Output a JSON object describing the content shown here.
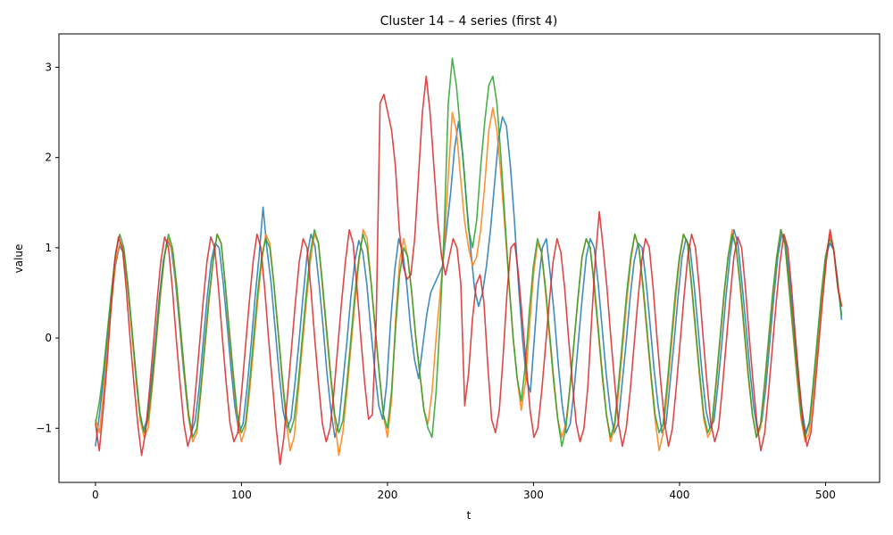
{
  "chart_data": {
    "type": "line",
    "title": "Cluster 14 – 4 series (first 4)",
    "xlabel": "t",
    "ylabel": "value",
    "xlim": [
      -25,
      537
    ],
    "ylim": [
      -1.6,
      3.37
    ],
    "xticks": [
      0,
      100,
      200,
      300,
      400,
      500
    ],
    "yticks": [
      -1,
      0,
      1,
      2,
      3
    ],
    "grid": false,
    "legend": "none",
    "n_points": 512,
    "series": [
      {
        "color": "#1f77b4",
        "values": [
          -1.2,
          -0.85,
          -0.45,
          0.0,
          0.42,
          0.8,
          1.02,
          0.95,
          0.6,
          0.15,
          -0.35,
          -0.8,
          -1.02,
          -0.9,
          -0.5,
          -0.05,
          0.45,
          0.85,
          1.08,
          1.0,
          0.65,
          0.18,
          -0.32,
          -0.75,
          -1.05,
          -0.92,
          -0.55,
          -0.05,
          0.45,
          0.85,
          1.05,
          1.0,
          0.62,
          0.15,
          -0.35,
          -0.78,
          -1.05,
          -0.95,
          -0.55,
          -0.08,
          0.45,
          0.9,
          1.45,
          0.98,
          0.62,
          0.12,
          -0.38,
          -0.8,
          -1.0,
          -0.9,
          -0.5,
          -0.05,
          0.45,
          0.9,
          1.15,
          1.02,
          0.62,
          0.15,
          -0.38,
          -0.8,
          -1.1,
          -0.95,
          -0.5,
          -0.05,
          0.45,
          0.85,
          1.08,
          0.95,
          0.6,
          0.1,
          -0.35,
          -0.75,
          -0.9,
          -0.5,
          0.2,
          0.75,
          1.1,
          0.95,
          0.6,
          0.1,
          -0.25,
          -0.45,
          -0.1,
          0.25,
          0.5,
          0.6,
          0.7,
          0.8,
          1.2,
          1.6,
          2.1,
          2.4,
          2.05,
          1.5,
          1.0,
          0.55,
          0.35,
          0.5,
          0.8,
          1.2,
          1.7,
          2.2,
          2.45,
          2.35,
          1.9,
          1.3,
          0.6,
          0.0,
          -0.45,
          -0.6,
          0.0,
          0.6,
          1.0,
          1.1,
          0.7,
          0.25,
          -0.3,
          -0.75,
          -1.05,
          -0.95,
          -0.55,
          -0.05,
          0.45,
          0.9,
          1.1,
          1.0,
          0.6,
          0.1,
          -0.4,
          -0.8,
          -1.05,
          -0.95,
          -0.5,
          -0.05,
          0.45,
          0.85,
          1.05,
          1.0,
          0.62,
          0.15,
          -0.35,
          -0.75,
          -1.05,
          -0.95,
          -0.5,
          -0.05,
          0.45,
          0.9,
          1.1,
          1.0,
          0.6,
          0.12,
          -0.38,
          -0.8,
          -1.0,
          -0.92,
          -0.52,
          -0.05,
          0.45,
          0.9,
          1.2,
          1.05,
          0.62,
          0.15,
          -0.35,
          -0.78,
          -1.05,
          -0.92,
          -0.55,
          -0.05,
          0.45,
          0.9,
          1.15,
          1.05,
          0.62,
          0.15,
          -0.35,
          -0.78,
          -1.05,
          -0.92,
          -0.5,
          -0.05,
          0.45,
          0.88,
          1.05,
          0.98,
          0.65,
          0.2
        ]
      },
      {
        "color": "#ff7f0e",
        "values": [
          -0.9,
          -1.05,
          -0.6,
          -0.1,
          0.4,
          0.85,
          1.05,
          0.95,
          0.55,
          0.05,
          -0.45,
          -0.9,
          -1.1,
          -1.0,
          -0.55,
          -0.05,
          0.45,
          0.9,
          1.1,
          0.95,
          0.55,
          0.05,
          -0.45,
          -0.9,
          -1.15,
          -1.05,
          -0.6,
          -0.1,
          0.4,
          0.85,
          1.15,
          1.05,
          0.6,
          0.05,
          -0.45,
          -0.9,
          -1.15,
          -1.0,
          -0.6,
          -0.1,
          0.4,
          0.85,
          1.15,
          1.05,
          0.6,
          0.1,
          -0.45,
          -0.9,
          -1.25,
          -1.1,
          -0.6,
          -0.1,
          0.4,
          0.85,
          1.15,
          1.05,
          0.55,
          0.05,
          -0.45,
          -0.9,
          -1.3,
          -1.05,
          -0.6,
          -0.1,
          0.4,
          0.85,
          1.2,
          1.1,
          0.6,
          0.1,
          -0.4,
          -0.85,
          -1.1,
          -0.7,
          0.2,
          0.85,
          1.1,
          0.9,
          0.5,
          0.0,
          -0.4,
          -0.8,
          -0.95,
          -0.6,
          0.0,
          0.5,
          1.0,
          1.8,
          2.5,
          2.3,
          1.8,
          1.3,
          1.0,
          0.8,
          0.9,
          1.2,
          1.7,
          2.3,
          2.55,
          2.3,
          1.8,
          1.2,
          0.6,
          0.0,
          -0.45,
          -0.8,
          -0.5,
          0.1,
          0.7,
          1.05,
          0.95,
          0.5,
          0.0,
          -0.5,
          -0.9,
          -1.1,
          -0.95,
          -0.55,
          -0.05,
          0.45,
          0.9,
          1.1,
          1.0,
          0.55,
          0.05,
          -0.45,
          -0.85,
          -1.15,
          -1.0,
          -0.6,
          -0.1,
          0.4,
          0.85,
          1.15,
          1.0,
          0.55,
          0.05,
          -0.45,
          -0.9,
          -1.25,
          -1.05,
          -0.6,
          -0.1,
          0.4,
          0.85,
          1.15,
          1.05,
          0.55,
          0.05,
          -0.45,
          -0.9,
          -1.1,
          -1.0,
          -0.55,
          -0.05,
          0.45,
          0.9,
          1.2,
          1.0,
          0.55,
          0.05,
          -0.45,
          -0.85,
          -1.1,
          -1.0,
          -0.55,
          -0.05,
          0.45,
          0.9,
          1.2,
          1.05,
          0.55,
          0.05,
          -0.45,
          -0.9,
          -1.15,
          -1.05,
          -0.6,
          -0.1,
          0.4,
          0.85,
          1.15,
          1.0,
          0.6,
          0.35
        ]
      },
      {
        "color": "#2ca02c",
        "values": [
          -0.95,
          -0.7,
          -0.35,
          0.1,
          0.55,
          0.95,
          1.15,
          1.0,
          0.6,
          0.1,
          -0.4,
          -0.85,
          -1.05,
          -0.9,
          -0.5,
          0.0,
          0.5,
          0.9,
          1.15,
          1.0,
          0.6,
          0.1,
          -0.4,
          -0.85,
          -1.1,
          -1.0,
          -0.55,
          -0.05,
          0.45,
          0.85,
          1.15,
          1.05,
          0.6,
          0.1,
          -0.4,
          -0.85,
          -1.05,
          -0.95,
          -0.5,
          0.0,
          0.5,
          0.9,
          1.1,
          1.0,
          0.6,
          0.1,
          -0.4,
          -0.85,
          -1.05,
          -0.9,
          -0.5,
          0.0,
          0.5,
          0.95,
          1.2,
          1.05,
          0.6,
          0.1,
          -0.4,
          -0.85,
          -1.05,
          -0.92,
          -0.5,
          0.0,
          0.5,
          0.9,
          1.15,
          1.0,
          0.6,
          0.1,
          -0.4,
          -0.85,
          -1.0,
          -0.6,
          0.1,
          0.7,
          1.0,
          0.9,
          0.5,
          0.0,
          -0.4,
          -0.8,
          -1.0,
          -1.1,
          -0.6,
          0.2,
          1.2,
          2.6,
          3.1,
          2.8,
          2.3,
          1.8,
          1.2,
          1.0,
          1.3,
          1.9,
          2.4,
          2.8,
          2.9,
          2.6,
          2.0,
          1.3,
          0.6,
          0.0,
          -0.45,
          -0.7,
          -0.3,
          0.3,
          0.8,
          1.1,
          0.95,
          0.55,
          0.05,
          -0.45,
          -0.9,
          -1.2,
          -1.0,
          -0.55,
          -0.05,
          0.45,
          0.9,
          1.1,
          1.0,
          0.6,
          0.1,
          -0.4,
          -0.85,
          -1.1,
          -0.95,
          -0.5,
          0.0,
          0.5,
          0.9,
          1.15,
          1.0,
          0.6,
          0.1,
          -0.4,
          -0.85,
          -1.05,
          -0.95,
          -0.5,
          0.0,
          0.5,
          0.9,
          1.15,
          1.05,
          0.6,
          0.1,
          -0.4,
          -0.85,
          -1.05,
          -0.95,
          -0.5,
          0.0,
          0.5,
          0.9,
          1.15,
          1.0,
          0.6,
          0.1,
          -0.4,
          -0.85,
          -1.1,
          -0.95,
          -0.5,
          0.0,
          0.5,
          0.9,
          1.2,
          1.05,
          0.6,
          0.1,
          -0.4,
          -0.85,
          -1.1,
          -0.95,
          -0.5,
          0.0,
          0.5,
          0.9,
          1.1,
          1.0,
          0.6,
          0.25
        ]
      },
      {
        "color": "#d62728",
        "values": [
          -0.95,
          -1.25,
          -0.8,
          -0.3,
          0.3,
          0.85,
          1.12,
          1.0,
          0.55,
          0.0,
          -0.5,
          -0.95,
          -1.3,
          -1.05,
          -0.6,
          -0.1,
          0.4,
          0.85,
          1.12,
          1.0,
          0.55,
          0.0,
          -0.5,
          -0.95,
          -1.2,
          -1.05,
          -0.6,
          -0.1,
          0.4,
          0.85,
          1.12,
          1.0,
          0.55,
          0.0,
          -0.5,
          -0.95,
          -1.15,
          -1.05,
          -0.6,
          -0.1,
          0.4,
          0.85,
          1.15,
          1.0,
          0.55,
          0.0,
          -0.5,
          -1.0,
          -1.4,
          -1.1,
          -0.6,
          -0.1,
          0.4,
          0.85,
          1.1,
          1.0,
          0.55,
          0.0,
          -0.5,
          -0.95,
          -1.15,
          -1.0,
          -0.6,
          -0.1,
          0.4,
          0.85,
          1.2,
          1.05,
          0.55,
          0.0,
          -0.5,
          -0.9,
          -0.85,
          0.2,
          2.6,
          2.7,
          2.5,
          2.3,
          1.9,
          1.2,
          0.8,
          0.65,
          0.7,
          1.1,
          1.8,
          2.5,
          2.9,
          2.5,
          1.9,
          1.3,
          0.9,
          0.7,
          0.9,
          1.1,
          1.0,
          0.6,
          -0.75,
          -0.4,
          0.2,
          0.6,
          0.7,
          0.4,
          -0.3,
          -0.9,
          -1.05,
          -0.8,
          -0.2,
          0.5,
          1.0,
          1.05,
          0.7,
          0.2,
          -0.3,
          -0.8,
          -1.1,
          -1.0,
          -0.6,
          -0.1,
          0.4,
          0.85,
          1.1,
          0.95,
          0.55,
          0.0,
          -0.5,
          -0.95,
          -1.15,
          -1.0,
          -0.55,
          0.2,
          0.9,
          1.4,
          1.0,
          0.55,
          0.0,
          -0.5,
          -0.95,
          -1.2,
          -1.0,
          -0.6,
          -0.1,
          0.4,
          0.85,
          1.1,
          1.0,
          0.55,
          0.0,
          -0.5,
          -0.95,
          -1.2,
          -1.0,
          -0.55,
          -0.05,
          0.45,
          0.9,
          1.15,
          1.0,
          0.55,
          0.0,
          -0.5,
          -0.95,
          -1.15,
          -1.0,
          -0.55,
          -0.05,
          0.45,
          0.9,
          1.12,
          1.0,
          0.55,
          0.0,
          -0.5,
          -0.95,
          -1.25,
          -1.05,
          -0.6,
          -0.1,
          0.4,
          0.85,
          1.15,
          1.0,
          0.55,
          0.0,
          -0.5,
          -0.95,
          -1.2,
          -1.05,
          -0.6,
          -0.1,
          0.4,
          0.85,
          1.2,
          0.95,
          0.55,
          0.35
        ]
      }
    ]
  }
}
